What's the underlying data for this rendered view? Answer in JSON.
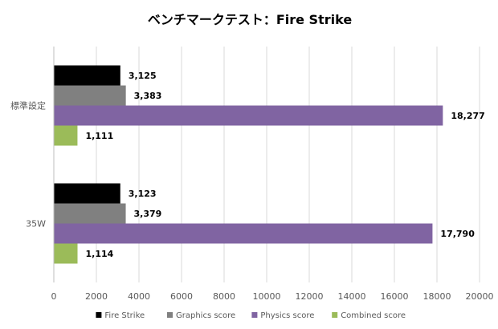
{
  "chart_data": {
    "type": "bar",
    "orientation": "horizontal",
    "title": "ベンチマークテスト：Fire Strike",
    "categories": [
      "標準設定",
      "35W"
    ],
    "series": [
      {
        "name": "Fire Strike",
        "values": [
          3125,
          3123
        ],
        "labels": [
          "3,125",
          "3,123"
        ],
        "color": "#000000"
      },
      {
        "name": "Graphics score",
        "values": [
          3383,
          3379
        ],
        "labels": [
          "3,383",
          "3,379"
        ],
        "color": "#808080"
      },
      {
        "name": "Physics score",
        "values": [
          18277,
          17790
        ],
        "labels": [
          "18,277",
          "17,790"
        ],
        "color": "#8064a2"
      },
      {
        "name": "Combined score",
        "values": [
          1111,
          1114
        ],
        "labels": [
          "1,111",
          "1,114"
        ],
        "color": "#9bbb59"
      }
    ],
    "xlim": [
      0,
      20000
    ],
    "xticks": [
      0,
      2000,
      4000,
      6000,
      8000,
      10000,
      12000,
      14000,
      16000,
      18000,
      20000
    ],
    "xlabel": "",
    "ylabel": "",
    "grid": "vertical",
    "legend_position": "bottom"
  },
  "colors": {
    "gridline": "#d9d9d9",
    "axis_line": "#bfbfbf",
    "text": "#000000",
    "tick_text": "#595959"
  }
}
